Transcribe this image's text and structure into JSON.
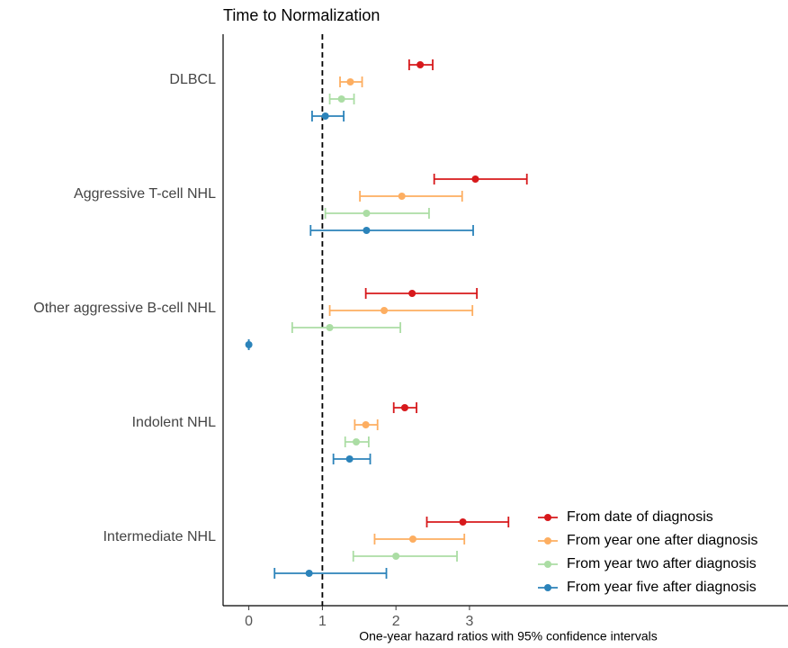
{
  "chart_data": {
    "type": "forest",
    "title": "Time to Normalization",
    "xlabel": "One-year hazard ratios with 95% confidence intervals",
    "categories": [
      "DLBCL",
      "Aggressive T-cell NHL",
      "Other aggressive B-cell NHL",
      "Indolent NHL",
      "Intermediate NHL"
    ],
    "series": [
      {
        "name": "From date of diagnosis",
        "color": "#d7191c",
        "values": [
          2.33,
          3.08,
          2.22,
          2.12,
          2.91
        ],
        "lower": [
          2.18,
          2.52,
          1.59,
          1.97,
          2.42
        ],
        "upper": [
          2.5,
          3.78,
          3.1,
          2.28,
          3.53
        ]
      },
      {
        "name": "From year one after diagnosis",
        "color": "#fdae61",
        "values": [
          1.38,
          2.08,
          1.84,
          1.59,
          2.23
        ],
        "lower": [
          1.24,
          1.51,
          1.1,
          1.44,
          1.71
        ],
        "upper": [
          1.54,
          2.9,
          3.04,
          1.75,
          2.93
        ]
      },
      {
        "name": "From year two after diagnosis",
        "color": "#abdda4",
        "values": [
          1.26,
          1.6,
          1.1,
          1.46,
          2.0
        ],
        "lower": [
          1.1,
          1.04,
          0.59,
          1.31,
          1.42
        ],
        "upper": [
          1.43,
          2.45,
          2.06,
          1.63,
          2.83
        ]
      },
      {
        "name": "From year five after diagnosis",
        "color": "#2b83ba",
        "values": [
          1.04,
          1.6,
          0,
          1.37,
          0.82
        ],
        "lower": [
          0.86,
          0.84,
          0,
          1.15,
          0.35
        ],
        "upper": [
          1.29,
          3.05,
          0,
          1.65,
          1.87
        ]
      }
    ],
    "reference_line": 1,
    "xlim": [
      -0.35,
      7.33
    ],
    "xticks": [
      0,
      1,
      2,
      3
    ],
    "legend": "bottom-right"
  }
}
